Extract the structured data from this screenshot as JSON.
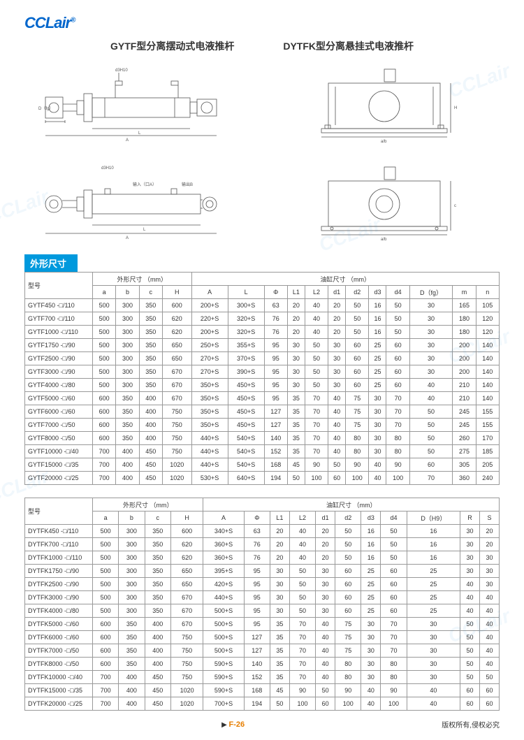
{
  "logo": "CCLair",
  "title_left": "GYTF型分离摆动式电液推杆",
  "title_right": "DYTFK型分离悬挂式电液推杆",
  "section_label": "外形尺寸",
  "header_group_1": "外形尺寸  （mm）",
  "header_group_2": "油缸尺寸  （mm）",
  "model_label": "型号",
  "page_num": "F-26",
  "copyright": "版权所有,侵权必究",
  "table1": {
    "cols": [
      "a",
      "b",
      "c",
      "H",
      "A",
      "L",
      "Φ",
      "L1",
      "L2",
      "d1",
      "d2",
      "d3",
      "d4",
      "D（fg）",
      "m",
      "n"
    ],
    "rows": [
      [
        "GYTF450 -□/110",
        "500",
        "300",
        "350",
        "600",
        "200+S",
        "300+S",
        "63",
        "20",
        "40",
        "20",
        "50",
        "16",
        "50",
        "30",
        "165",
        "105"
      ],
      [
        "GYTF700 -□/110",
        "500",
        "300",
        "350",
        "620",
        "220+S",
        "320+S",
        "76",
        "20",
        "40",
        "20",
        "50",
        "16",
        "50",
        "30",
        "180",
        "120"
      ],
      [
        "GYTF1000 -□/110",
        "500",
        "300",
        "350",
        "620",
        "200+S",
        "320+S",
        "76",
        "20",
        "40",
        "20",
        "50",
        "16",
        "50",
        "30",
        "180",
        "120"
      ],
      [
        "GYTF1750 -□/90",
        "500",
        "300",
        "350",
        "650",
        "250+S",
        "355+S",
        "95",
        "30",
        "50",
        "30",
        "60",
        "25",
        "60",
        "30",
        "200",
        "140"
      ],
      [
        "GYTF2500 -□/90",
        "500",
        "300",
        "350",
        "650",
        "270+S",
        "370+S",
        "95",
        "30",
        "50",
        "30",
        "60",
        "25",
        "60",
        "30",
        "200",
        "140"
      ],
      [
        "GYTF3000 -□/90",
        "500",
        "300",
        "350",
        "670",
        "270+S",
        "390+S",
        "95",
        "30",
        "50",
        "30",
        "60",
        "25",
        "60",
        "30",
        "200",
        "140"
      ],
      [
        "GYTF4000 -□/80",
        "500",
        "300",
        "350",
        "670",
        "350+S",
        "450+S",
        "95",
        "30",
        "50",
        "30",
        "60",
        "25",
        "60",
        "40",
        "210",
        "140"
      ],
      [
        "GYTF5000 -□/60",
        "600",
        "350",
        "400",
        "670",
        "350+S",
        "450+S",
        "95",
        "35",
        "70",
        "40",
        "75",
        "30",
        "70",
        "40",
        "210",
        "140"
      ],
      [
        "GYTF6000 -□/60",
        "600",
        "350",
        "400",
        "750",
        "350+S",
        "450+S",
        "127",
        "35",
        "70",
        "40",
        "75",
        "30",
        "70",
        "50",
        "245",
        "155"
      ],
      [
        "GYTF7000 -□/50",
        "600",
        "350",
        "400",
        "750",
        "350+S",
        "450+S",
        "127",
        "35",
        "70",
        "40",
        "75",
        "30",
        "70",
        "50",
        "245",
        "155"
      ],
      [
        "GYTF8000 -□/50",
        "600",
        "350",
        "400",
        "750",
        "440+S",
        "540+S",
        "140",
        "35",
        "70",
        "40",
        "80",
        "30",
        "80",
        "50",
        "260",
        "170"
      ],
      [
        "GYTF10000 -□/40",
        "700",
        "400",
        "450",
        "750",
        "440+S",
        "540+S",
        "152",
        "35",
        "70",
        "40",
        "80",
        "30",
        "80",
        "50",
        "275",
        "185"
      ],
      [
        "GYTF15000 -□/35",
        "700",
        "400",
        "450",
        "1020",
        "440+S",
        "540+S",
        "168",
        "45",
        "90",
        "50",
        "90",
        "40",
        "90",
        "60",
        "305",
        "205"
      ],
      [
        "GYTF20000 -□/25",
        "700",
        "400",
        "450",
        "1020",
        "530+S",
        "640+S",
        "194",
        "50",
        "100",
        "60",
        "100",
        "40",
        "100",
        "70",
        "360",
        "240"
      ]
    ]
  },
  "table2": {
    "cols": [
      "a",
      "b",
      "c",
      "H",
      "A",
      "Φ",
      "L1",
      "L2",
      "d1",
      "d2",
      "d3",
      "d4",
      "D（H9）",
      "R",
      "S"
    ],
    "rows": [
      [
        "DYTFK450 -□/110",
        "500",
        "300",
        "350",
        "600",
        "340+S",
        "63",
        "20",
        "40",
        "20",
        "50",
        "16",
        "50",
        "16",
        "30",
        "20"
      ],
      [
        "DYTFK700 -□/110",
        "500",
        "300",
        "350",
        "620",
        "360+S",
        "76",
        "20",
        "40",
        "20",
        "50",
        "16",
        "50",
        "16",
        "30",
        "20"
      ],
      [
        "DYTFK1000 -□/110",
        "500",
        "300",
        "350",
        "620",
        "360+S",
        "76",
        "20",
        "40",
        "20",
        "50",
        "16",
        "50",
        "16",
        "30",
        "30"
      ],
      [
        "DYTFK1750 -□/90",
        "500",
        "300",
        "350",
        "650",
        "395+S",
        "95",
        "30",
        "50",
        "30",
        "60",
        "25",
        "60",
        "25",
        "30",
        "30"
      ],
      [
        "DYTFK2500 -□/90",
        "500",
        "300",
        "350",
        "650",
        "420+S",
        "95",
        "30",
        "50",
        "30",
        "60",
        "25",
        "60",
        "25",
        "40",
        "30"
      ],
      [
        "DYTFK3000 -□/90",
        "500",
        "300",
        "350",
        "670",
        "440+S",
        "95",
        "30",
        "50",
        "30",
        "60",
        "25",
        "60",
        "25",
        "40",
        "40"
      ],
      [
        "DYTFK4000 -□/80",
        "500",
        "300",
        "350",
        "670",
        "500+S",
        "95",
        "30",
        "50",
        "30",
        "60",
        "25",
        "60",
        "25",
        "40",
        "40"
      ],
      [
        "DYTFK5000 -□/60",
        "600",
        "350",
        "400",
        "670",
        "500+S",
        "95",
        "35",
        "70",
        "40",
        "75",
        "30",
        "70",
        "30",
        "50",
        "40"
      ],
      [
        "DYTFK6000 -□/60",
        "600",
        "350",
        "400",
        "750",
        "500+S",
        "127",
        "35",
        "70",
        "40",
        "75",
        "30",
        "70",
        "30",
        "50",
        "40"
      ],
      [
        "DYTFK7000 -□/50",
        "600",
        "350",
        "400",
        "750",
        "500+S",
        "127",
        "35",
        "70",
        "40",
        "75",
        "30",
        "70",
        "30",
        "50",
        "40"
      ],
      [
        "DYTFK8000 -□/50",
        "600",
        "350",
        "400",
        "750",
        "590+S",
        "140",
        "35",
        "70",
        "40",
        "80",
        "30",
        "80",
        "30",
        "50",
        "40"
      ],
      [
        "DYTFK10000 -□/40",
        "700",
        "400",
        "450",
        "750",
        "590+S",
        "152",
        "35",
        "70",
        "40",
        "80",
        "30",
        "80",
        "30",
        "50",
        "50"
      ],
      [
        "DYTFK15000 -□/35",
        "700",
        "400",
        "450",
        "1020",
        "590+S",
        "168",
        "45",
        "90",
        "50",
        "90",
        "40",
        "90",
        "40",
        "60",
        "60"
      ],
      [
        "DYTFK20000 -□/25",
        "700",
        "400",
        "450",
        "1020",
        "700+S",
        "194",
        "50",
        "100",
        "60",
        "100",
        "40",
        "100",
        "40",
        "60",
        "60"
      ]
    ]
  },
  "watermarks": [
    "CCLair",
    "CCLair",
    "CCLair",
    "CCLair",
    "CCLair",
    "CCLair"
  ],
  "diag_labels": {
    "d3h10": "d3H10",
    "d1fg": "D（fg）",
    "inlet": "输入（口A）",
    "outlet": "输出B",
    "a_b": "a/b"
  }
}
